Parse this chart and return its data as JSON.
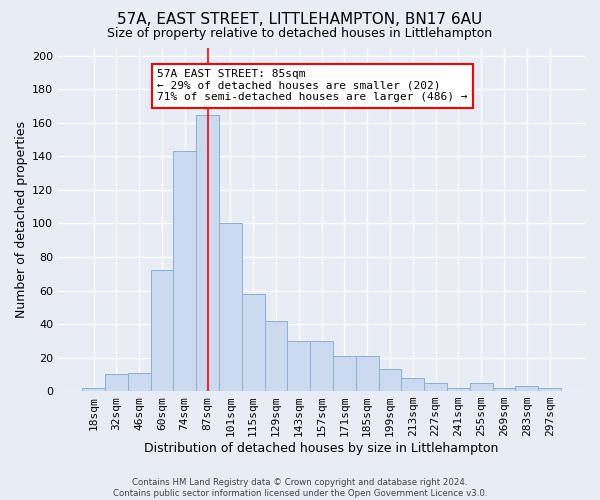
{
  "title": "57A, EAST STREET, LITTLEHAMPTON, BN17 6AU",
  "subtitle": "Size of property relative to detached houses in Littlehampton",
  "xlabel": "Distribution of detached houses by size in Littlehampton",
  "ylabel": "Number of detached properties",
  "footer_line1": "Contains HM Land Registry data © Crown copyright and database right 2024.",
  "footer_line2": "Contains public sector information licensed under the Open Government Licence v3.0.",
  "bin_labels": [
    "18sqm",
    "32sqm",
    "46sqm",
    "60sqm",
    "74sqm",
    "87sqm",
    "101sqm",
    "115sqm",
    "129sqm",
    "143sqm",
    "157sqm",
    "171sqm",
    "185sqm",
    "199sqm",
    "213sqm",
    "227sqm",
    "241sqm",
    "255sqm",
    "269sqm",
    "283sqm",
    "297sqm"
  ],
  "bar_values": [
    2,
    10,
    11,
    72,
    143,
    165,
    100,
    58,
    42,
    30,
    30,
    21,
    21,
    13,
    8,
    5,
    2,
    5,
    2,
    3,
    2
  ],
  "bar_color": "#ccdaf0",
  "bar_edge_color": "#8ab0d8",
  "property_line_x": 5.0,
  "property_line_color": "red",
  "annotation_text": "57A EAST STREET: 85sqm\n← 29% of detached houses are smaller (202)\n71% of semi-detached houses are larger (486) →",
  "annotation_box_color": "white",
  "annotation_box_edge_color": "red",
  "ylim": [
    0,
    205
  ],
  "yticks": [
    0,
    20,
    40,
    60,
    80,
    100,
    120,
    140,
    160,
    180,
    200
  ],
  "background_color": "#e8edf5",
  "grid_color": "white",
  "title_fontsize": 11,
  "subtitle_fontsize": 9,
  "xlabel_fontsize": 9,
  "ylabel_fontsize": 9,
  "tick_fontsize": 8,
  "annotation_fontsize": 8
}
